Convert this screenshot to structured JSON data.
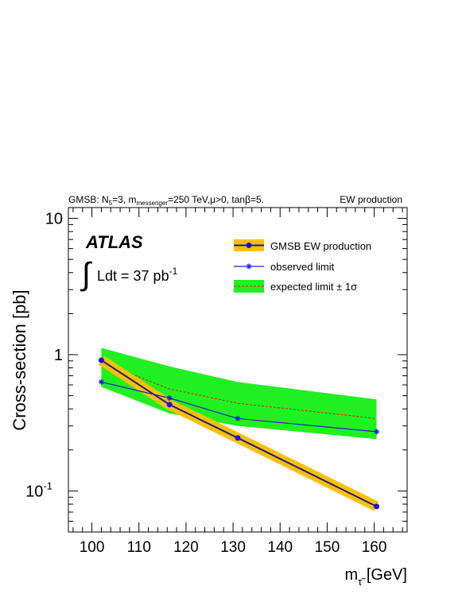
{
  "header": {
    "left_text": "GMSB: N",
    "left_sub5": "5",
    "left_mid": "=3, m",
    "left_sub_mess": "messenger",
    "left_rest": "=250 TeV,μ>0, tanβ=5.",
    "right_text": "EW production"
  },
  "labels": {
    "atlas": "ATLAS",
    "lumi_integral": "∫",
    "lumi_text": "Ldt = 37 pb",
    "lumi_sup": "-1"
  },
  "legend": {
    "production": "GMSB EW production",
    "observed": "observed limit",
    "expected": "expected limit ± 1σ"
  },
  "colors": {
    "production_band": "#ffc000",
    "production_line": "#1c1c8c",
    "production_marker": "#1414e0",
    "observed": "#1e1ed2",
    "expected_band": "#20f020",
    "expected_line": "#c0281e"
  },
  "chart_data": {
    "type": "line",
    "xlabel": "m",
    "xlabel_sub": "τ̃",
    "xlabel_unit": " [GeV]",
    "ylabel": "Cross-section [pb]",
    "xlim": [
      95,
      167
    ],
    "ylim": [
      0.05,
      12
    ],
    "yscale": "log",
    "x_ticks": [
      100,
      110,
      120,
      130,
      140,
      150,
      160
    ],
    "y_ticks": [
      {
        "value": 10,
        "label": "10"
      },
      {
        "value": 1,
        "label": "1"
      },
      {
        "value": 0.1,
        "label": "10",
        "sup": "-1"
      }
    ],
    "series": [
      {
        "name": "GMSB EW production",
        "x": [
          102,
          116.5,
          131,
          160.5
        ],
        "y": [
          0.91,
          0.43,
          0.245,
          0.077
        ]
      },
      {
        "name": "observed limit",
        "x": [
          102,
          116.5,
          131,
          160.5
        ],
        "y": [
          0.63,
          0.48,
          0.34,
          0.272
        ]
      },
      {
        "name": "expected limit ± 1σ",
        "x": [
          102,
          116.5,
          131,
          160.5
        ],
        "y": [
          0.88,
          0.56,
          0.44,
          0.34
        ],
        "y_low": [
          0.58,
          0.37,
          0.3,
          0.24
        ],
        "y_high": [
          1.12,
          0.82,
          0.63,
          0.47
        ]
      }
    ]
  }
}
